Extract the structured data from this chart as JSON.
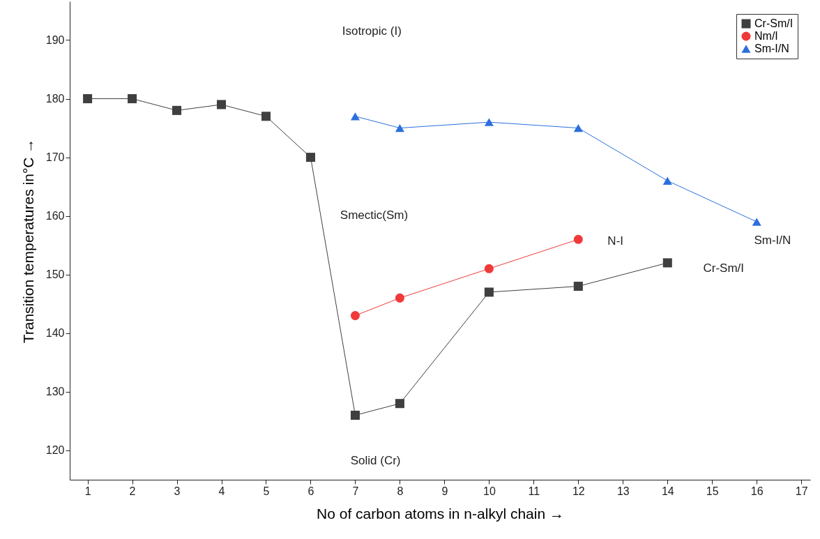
{
  "chart_data": {
    "type": "line",
    "xlabel": "No of carbon atoms in n-alkyl chain →",
    "ylabel": "Transition temperatures in°C →",
    "xlim": [
      0.6,
      17.2
    ],
    "xticks": [
      1,
      2,
      3,
      4,
      5,
      6,
      7,
      8,
      9,
      10,
      11,
      12,
      13,
      14,
      15,
      16,
      17
    ],
    "ylim": [
      115,
      196.6
    ],
    "yticks": [
      120,
      130,
      140,
      150,
      160,
      170,
      180,
      190
    ],
    "series": [
      {
        "name": "Cr-Sm/I",
        "color": "#3f3f3f",
        "marker": "square",
        "x": [
          1,
          2,
          3,
          4,
          5,
          6,
          7,
          8,
          10,
          12,
          14
        ],
        "values": [
          180,
          180,
          178,
          179,
          177,
          170,
          126,
          128,
          147,
          148,
          152
        ]
      },
      {
        "name": "Nm/I",
        "color": "#f03a3a",
        "marker": "circle",
        "x": [
          7,
          8,
          10,
          12
        ],
        "values": [
          143,
          146,
          151,
          156
        ]
      },
      {
        "name": "Sm-I/N",
        "color": "#2b6fde",
        "marker": "triangle",
        "x": [
          7,
          8,
          10,
          12,
          14,
          16
        ],
        "values": [
          177,
          175,
          176,
          175,
          166,
          159
        ]
      }
    ],
    "annotations": [
      "Isotropic (I)",
      "Smectic(Sm)",
      "Solid (Cr)",
      "N-I",
      "Cr-Sm/I",
      "Sm-I/N"
    ],
    "legend": "top right",
    "grid": false,
    "line_style": "solid"
  }
}
